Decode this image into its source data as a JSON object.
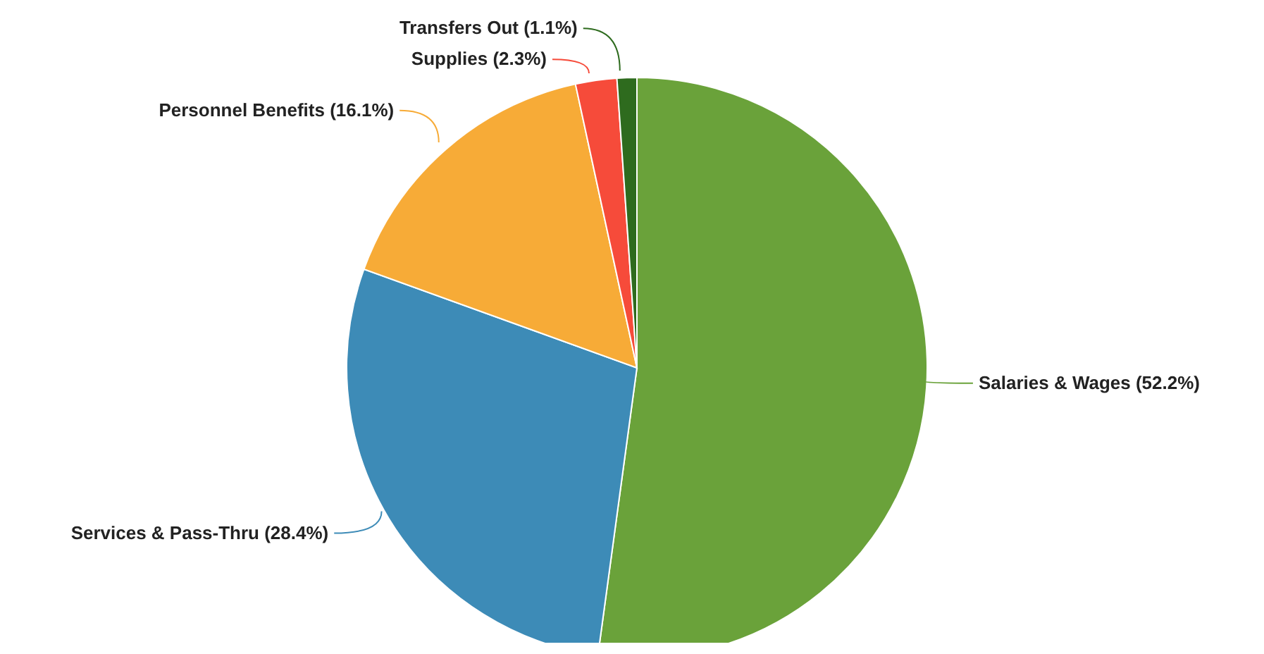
{
  "chart_data": {
    "type": "pie",
    "categories": [
      "Salaries & Wages",
      "Services & Pass-Thru",
      "Personnel Benefits",
      "Supplies",
      "Transfers Out"
    ],
    "values": [
      52.2,
      28.4,
      16.1,
      2.3,
      1.1
    ],
    "value_labels": [
      "(52.2%)",
      "(28.4%)",
      "(16.1%)",
      "(2.3%)",
      "(1.1%)"
    ],
    "colors": [
      "#6aa23a",
      "#3d8bb7",
      "#f7ab37",
      "#f64b3a",
      "#2e6b1e"
    ],
    "legend": false
  }
}
